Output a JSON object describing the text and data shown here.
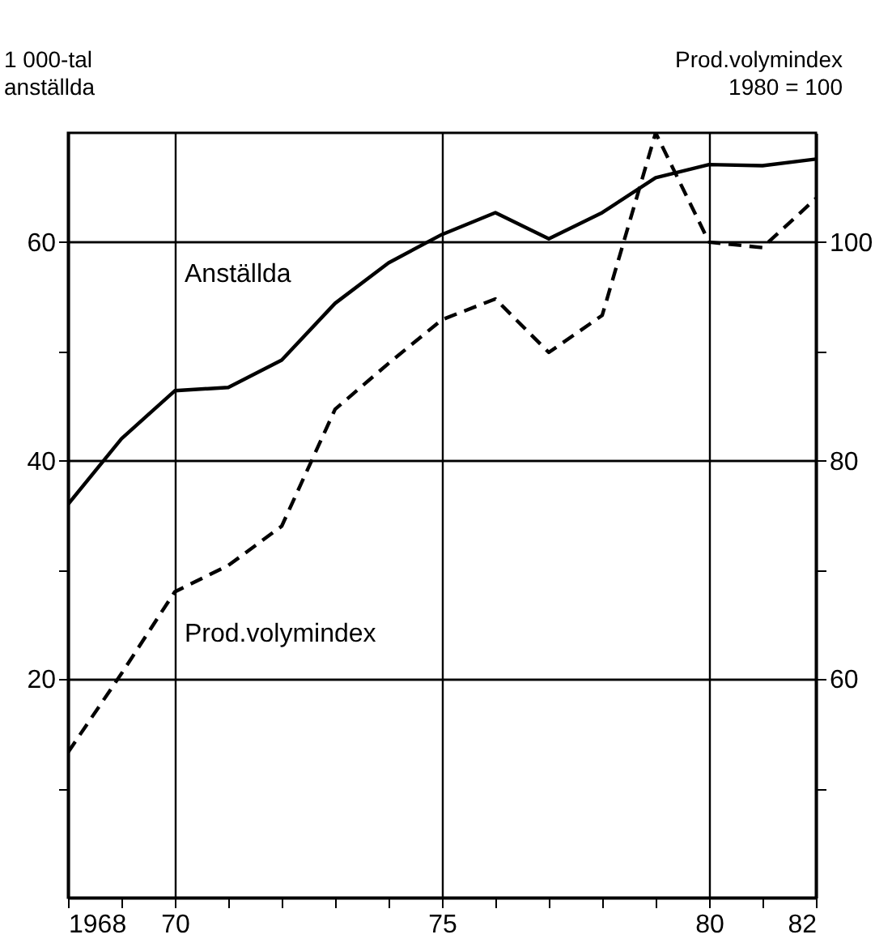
{
  "chart_data": {
    "type": "line",
    "ylabel": "1 000-tal\nanställda",
    "y2label": "Prod.volymindex\n1980 = 100",
    "x": [
      1968,
      1969,
      1970,
      1971,
      1972,
      1973,
      1974,
      1975,
      1976,
      1977,
      1978,
      1979,
      1980,
      1981,
      1982
    ],
    "xlim": [
      1968,
      1982
    ],
    "xticks": [
      {
        "value": 1968,
        "label": "1968"
      },
      {
        "value": 1969,
        "label": null
      },
      {
        "value": 1970,
        "label": "70"
      },
      {
        "value": 1971,
        "label": null
      },
      {
        "value": 1972,
        "label": null
      },
      {
        "value": 1973,
        "label": null
      },
      {
        "value": 1974,
        "label": null
      },
      {
        "value": 1975,
        "label": "75"
      },
      {
        "value": 1976,
        "label": null
      },
      {
        "value": 1977,
        "label": null
      },
      {
        "value": 1978,
        "label": null
      },
      {
        "value": 1979,
        "label": null
      },
      {
        "value": 1980,
        "label": "80"
      },
      {
        "value": 1981,
        "label": null
      },
      {
        "value": 1982,
        "label": "82"
      }
    ],
    "ylim": [
      0,
      70
    ],
    "yticks": [
      {
        "value": 10,
        "label": null
      },
      20,
      {
        "value": 30,
        "label": null
      },
      40,
      {
        "value": 50,
        "label": null
      },
      60
    ],
    "y2lim": [
      40,
      110
    ],
    "y2ticks": [
      {
        "value": 50,
        "label": null
      },
      60,
      {
        "value": 70,
        "label": null
      },
      80,
      {
        "value": 90,
        "label": null
      },
      100
    ],
    "grid": true,
    "series": [
      {
        "name": "Anställda",
        "color": "#000000",
        "line_style": "solid",
        "values": [
          36,
          42,
          46.4,
          46.7,
          49.2,
          54.4,
          58.1,
          60.7,
          62.7,
          60.3,
          62.7,
          65.9,
          67.1,
          67,
          67.6
        ]
      },
      {
        "name": "Prod.volymindex",
        "color": "#000000",
        "line_style": "dashed",
        "axis": "y2",
        "values": [
          53.3,
          60.5,
          68,
          70.4,
          74,
          84.7,
          88.9,
          92.9,
          94.8,
          89.9,
          93.3,
          110,
          100,
          99.5,
          104
        ]
      }
    ]
  }
}
